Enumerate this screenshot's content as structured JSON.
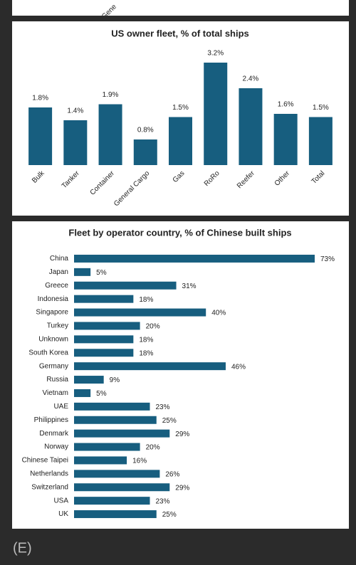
{
  "fragment_text": "Gene",
  "figure_label": "(E)",
  "chart_data": [
    {
      "type": "bar",
      "orientation": "vertical",
      "title": "US owner fleet, % of total ships",
      "categories": [
        "Bulk",
        "Tanker",
        "Container",
        "General Cargo",
        "Gas",
        "RoRo",
        "Reefer",
        "Other",
        "Total"
      ],
      "values": [
        1.8,
        1.4,
        1.9,
        0.8,
        1.5,
        3.2,
        2.4,
        1.6,
        1.5
      ],
      "value_labels": [
        "1.8%",
        "1.4%",
        "1.9%",
        "0.8%",
        "1.5%",
        "3.2%",
        "2.4%",
        "1.6%",
        "1.5%"
      ],
      "color": "#175e7f",
      "ylim": [
        0,
        3.5
      ]
    },
    {
      "type": "bar",
      "orientation": "horizontal",
      "title": "Fleet by operator country, % of Chinese built ships",
      "categories": [
        "China",
        "Japan",
        "Greece",
        "Indonesia",
        "Singapore",
        "Turkey",
        "Unknown",
        "South Korea",
        "Germany",
        "Russia",
        "Vietnam",
        "UAE",
        "Philippines",
        "Denmark",
        "Norway",
        "Chinese Taipei",
        "Netherlands",
        "Switzerland",
        "USA",
        "UK"
      ],
      "values": [
        73,
        5,
        31,
        18,
        40,
        20,
        18,
        18,
        46,
        9,
        5,
        23,
        25,
        29,
        20,
        16,
        26,
        29,
        23,
        25
      ],
      "value_labels": [
        "73%",
        "5%",
        "31%",
        "18%",
        "40%",
        "20%",
        "18%",
        "18%",
        "46%",
        "9%",
        "5%",
        "23%",
        "25%",
        "29%",
        "20%",
        "16%",
        "26%",
        "29%",
        "23%",
        "25%"
      ],
      "color": "#175e7f",
      "xlim": [
        0,
        73
      ]
    }
  ]
}
